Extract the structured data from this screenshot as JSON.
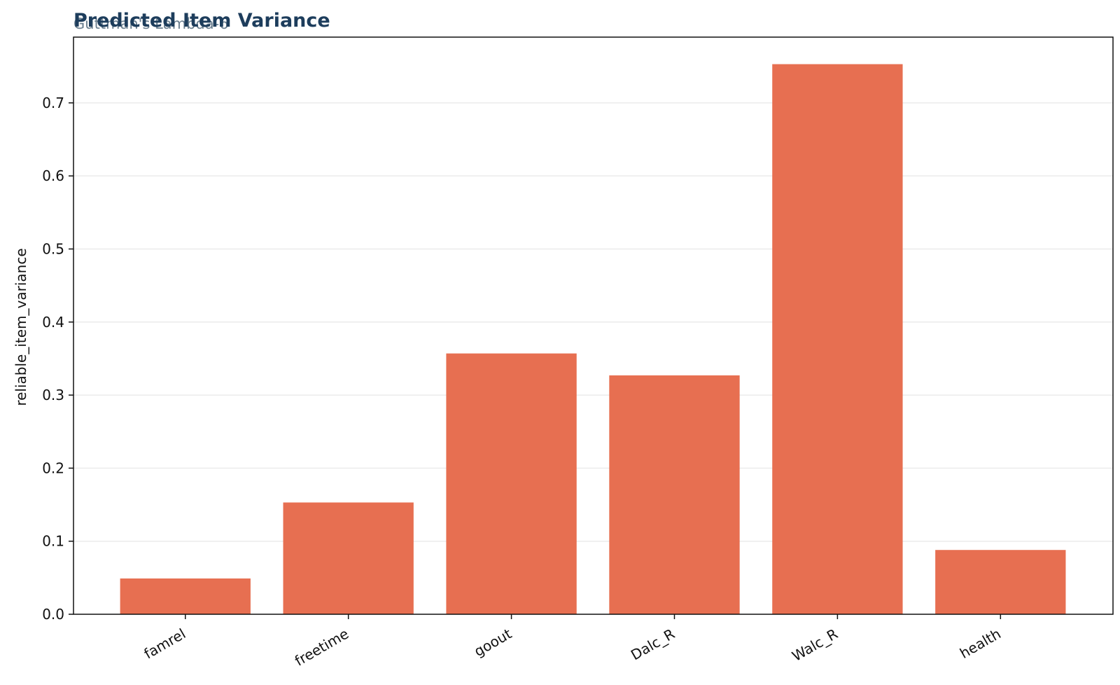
{
  "chart_data": {
    "type": "bar",
    "title": "Predicted Item Variance",
    "subtitle": "Guttman's Lambda-6",
    "xlabel": "",
    "ylabel": "reliable_item_variance",
    "categories": [
      "famrel",
      "freetime",
      "goout",
      "Dalc_R",
      "Walc_R",
      "health"
    ],
    "values": [
      0.049,
      0.153,
      0.357,
      0.327,
      0.753,
      0.088
    ],
    "ylim": [
      0,
      0.79
    ],
    "yticks": [
      0.0,
      0.1,
      0.2,
      0.3,
      0.4,
      0.5,
      0.6,
      0.7
    ],
    "ytick_labels": [
      "0.0",
      "0.1",
      "0.2",
      "0.3",
      "0.4",
      "0.5",
      "0.6",
      "0.7"
    ],
    "grid": "y",
    "bar_color": "#e76f51",
    "title_color": "#1d3d5c"
  }
}
